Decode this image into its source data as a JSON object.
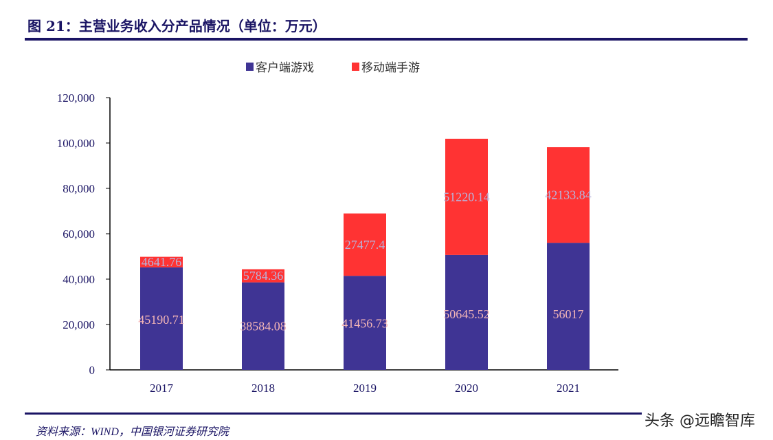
{
  "title": "图 21：主营业务收入分产品情况（单位：万元）",
  "source": "资料来源：WIND，中国银河证券研究院",
  "watermark": "头条 @远瞻智库",
  "chart_data": {
    "type": "bar",
    "stacked": true,
    "title": "",
    "xlabel": "",
    "ylabel": "",
    "categories": [
      "2017",
      "2018",
      "2019",
      "2020",
      "2021"
    ],
    "ylim": [
      0,
      120000
    ],
    "yticks": [
      0,
      20000,
      40000,
      60000,
      80000,
      100000,
      120000
    ],
    "ytick_labels": [
      "0",
      "20,000",
      "40,000",
      "60,000",
      "80,000",
      "100,000",
      "120,000"
    ],
    "legend_position": "top",
    "grid": false,
    "series": [
      {
        "name": "客户端游戏",
        "color": "#3f3494",
        "label_color": "#f4b6b6",
        "values": [
          45190.71,
          38584.08,
          41456.73,
          50645.52,
          56017
        ],
        "labels": [
          "45190.71",
          "38584.08",
          "41456.73",
          "50645.52",
          "56017"
        ]
      },
      {
        "name": "移动端手游",
        "color": "#ff3333",
        "label_color": "#b8b4dc",
        "values": [
          4641.76,
          5784.36,
          27477.4,
          51220.14,
          42133.84
        ],
        "labels": [
          "4641.76",
          "5784.36",
          "27477.4",
          "51220.14",
          "42133.84"
        ]
      }
    ]
  }
}
